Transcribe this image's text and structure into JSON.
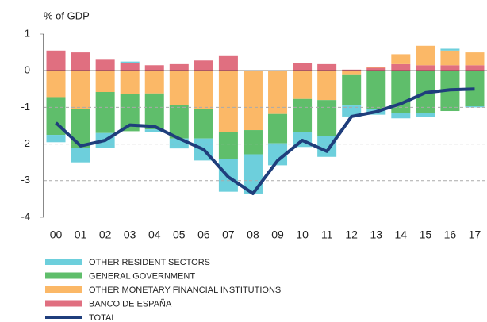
{
  "chart_data": {
    "type": "bar",
    "stacked": true,
    "ylabel": "% of GDP",
    "categories": [
      "00",
      "01",
      "02",
      "03",
      "04",
      "05",
      "06",
      "07",
      "08",
      "09",
      "10",
      "11",
      "12",
      "13",
      "14",
      "15",
      "16",
      "17"
    ],
    "ylim": [
      -4,
      1
    ],
    "yticks": [
      1,
      0,
      -1,
      -2,
      -3,
      -4
    ],
    "grid": true,
    "series": [
      {
        "name": "OTHER RESIDENT SECTORS",
        "color": "#6dcfdc",
        "values": [
          -0.2,
          -0.4,
          -0.4,
          0.05,
          -0.08,
          -0.27,
          -0.6,
          -0.9,
          -1.07,
          -0.6,
          -0.4,
          -0.57,
          -0.3,
          -0.15,
          -0.15,
          -0.12,
          0.05,
          -0.03
        ]
      },
      {
        "name": "GENERAL GOVERNMENT",
        "color": "#5fbe6b",
        "values": [
          -1.03,
          -1.05,
          -1.12,
          -1.02,
          -0.98,
          -0.92,
          -0.8,
          -0.73,
          -0.66,
          -0.8,
          -0.91,
          -0.98,
          -0.85,
          -1.05,
          -1.15,
          -1.15,
          -1.1,
          -0.97
        ]
      },
      {
        "name": "OTHER MONETARY FINANCIAL INSTITUTIONS",
        "color": "#fbb867",
        "values": [
          -0.72,
          -1.05,
          -0.58,
          -0.63,
          -0.62,
          -0.93,
          -1.05,
          -1.67,
          -1.62,
          -1.18,
          -0.77,
          -0.8,
          -0.1,
          0.03,
          0.27,
          0.53,
          0.4,
          0.35
        ]
      },
      {
        "name": "BANCO DE ESPAÑA",
        "color": "#e06f80",
        "values": [
          0.55,
          0.5,
          0.3,
          0.2,
          0.15,
          0.18,
          0.28,
          0.42,
          0,
          0,
          0.2,
          0.18,
          0.03,
          0.08,
          0.18,
          0.15,
          0.15,
          0.15
        ]
      },
      {
        "name": "TOTAL",
        "type": "line",
        "color": "#1f3e7c",
        "values": [
          -1.42,
          -2.05,
          -1.9,
          -1.48,
          -1.52,
          -1.85,
          -2.15,
          -2.9,
          -3.35,
          -2.45,
          -1.9,
          -2.2,
          -1.25,
          -1.12,
          -0.9,
          -0.6,
          -0.52,
          -0.5
        ]
      }
    ]
  }
}
